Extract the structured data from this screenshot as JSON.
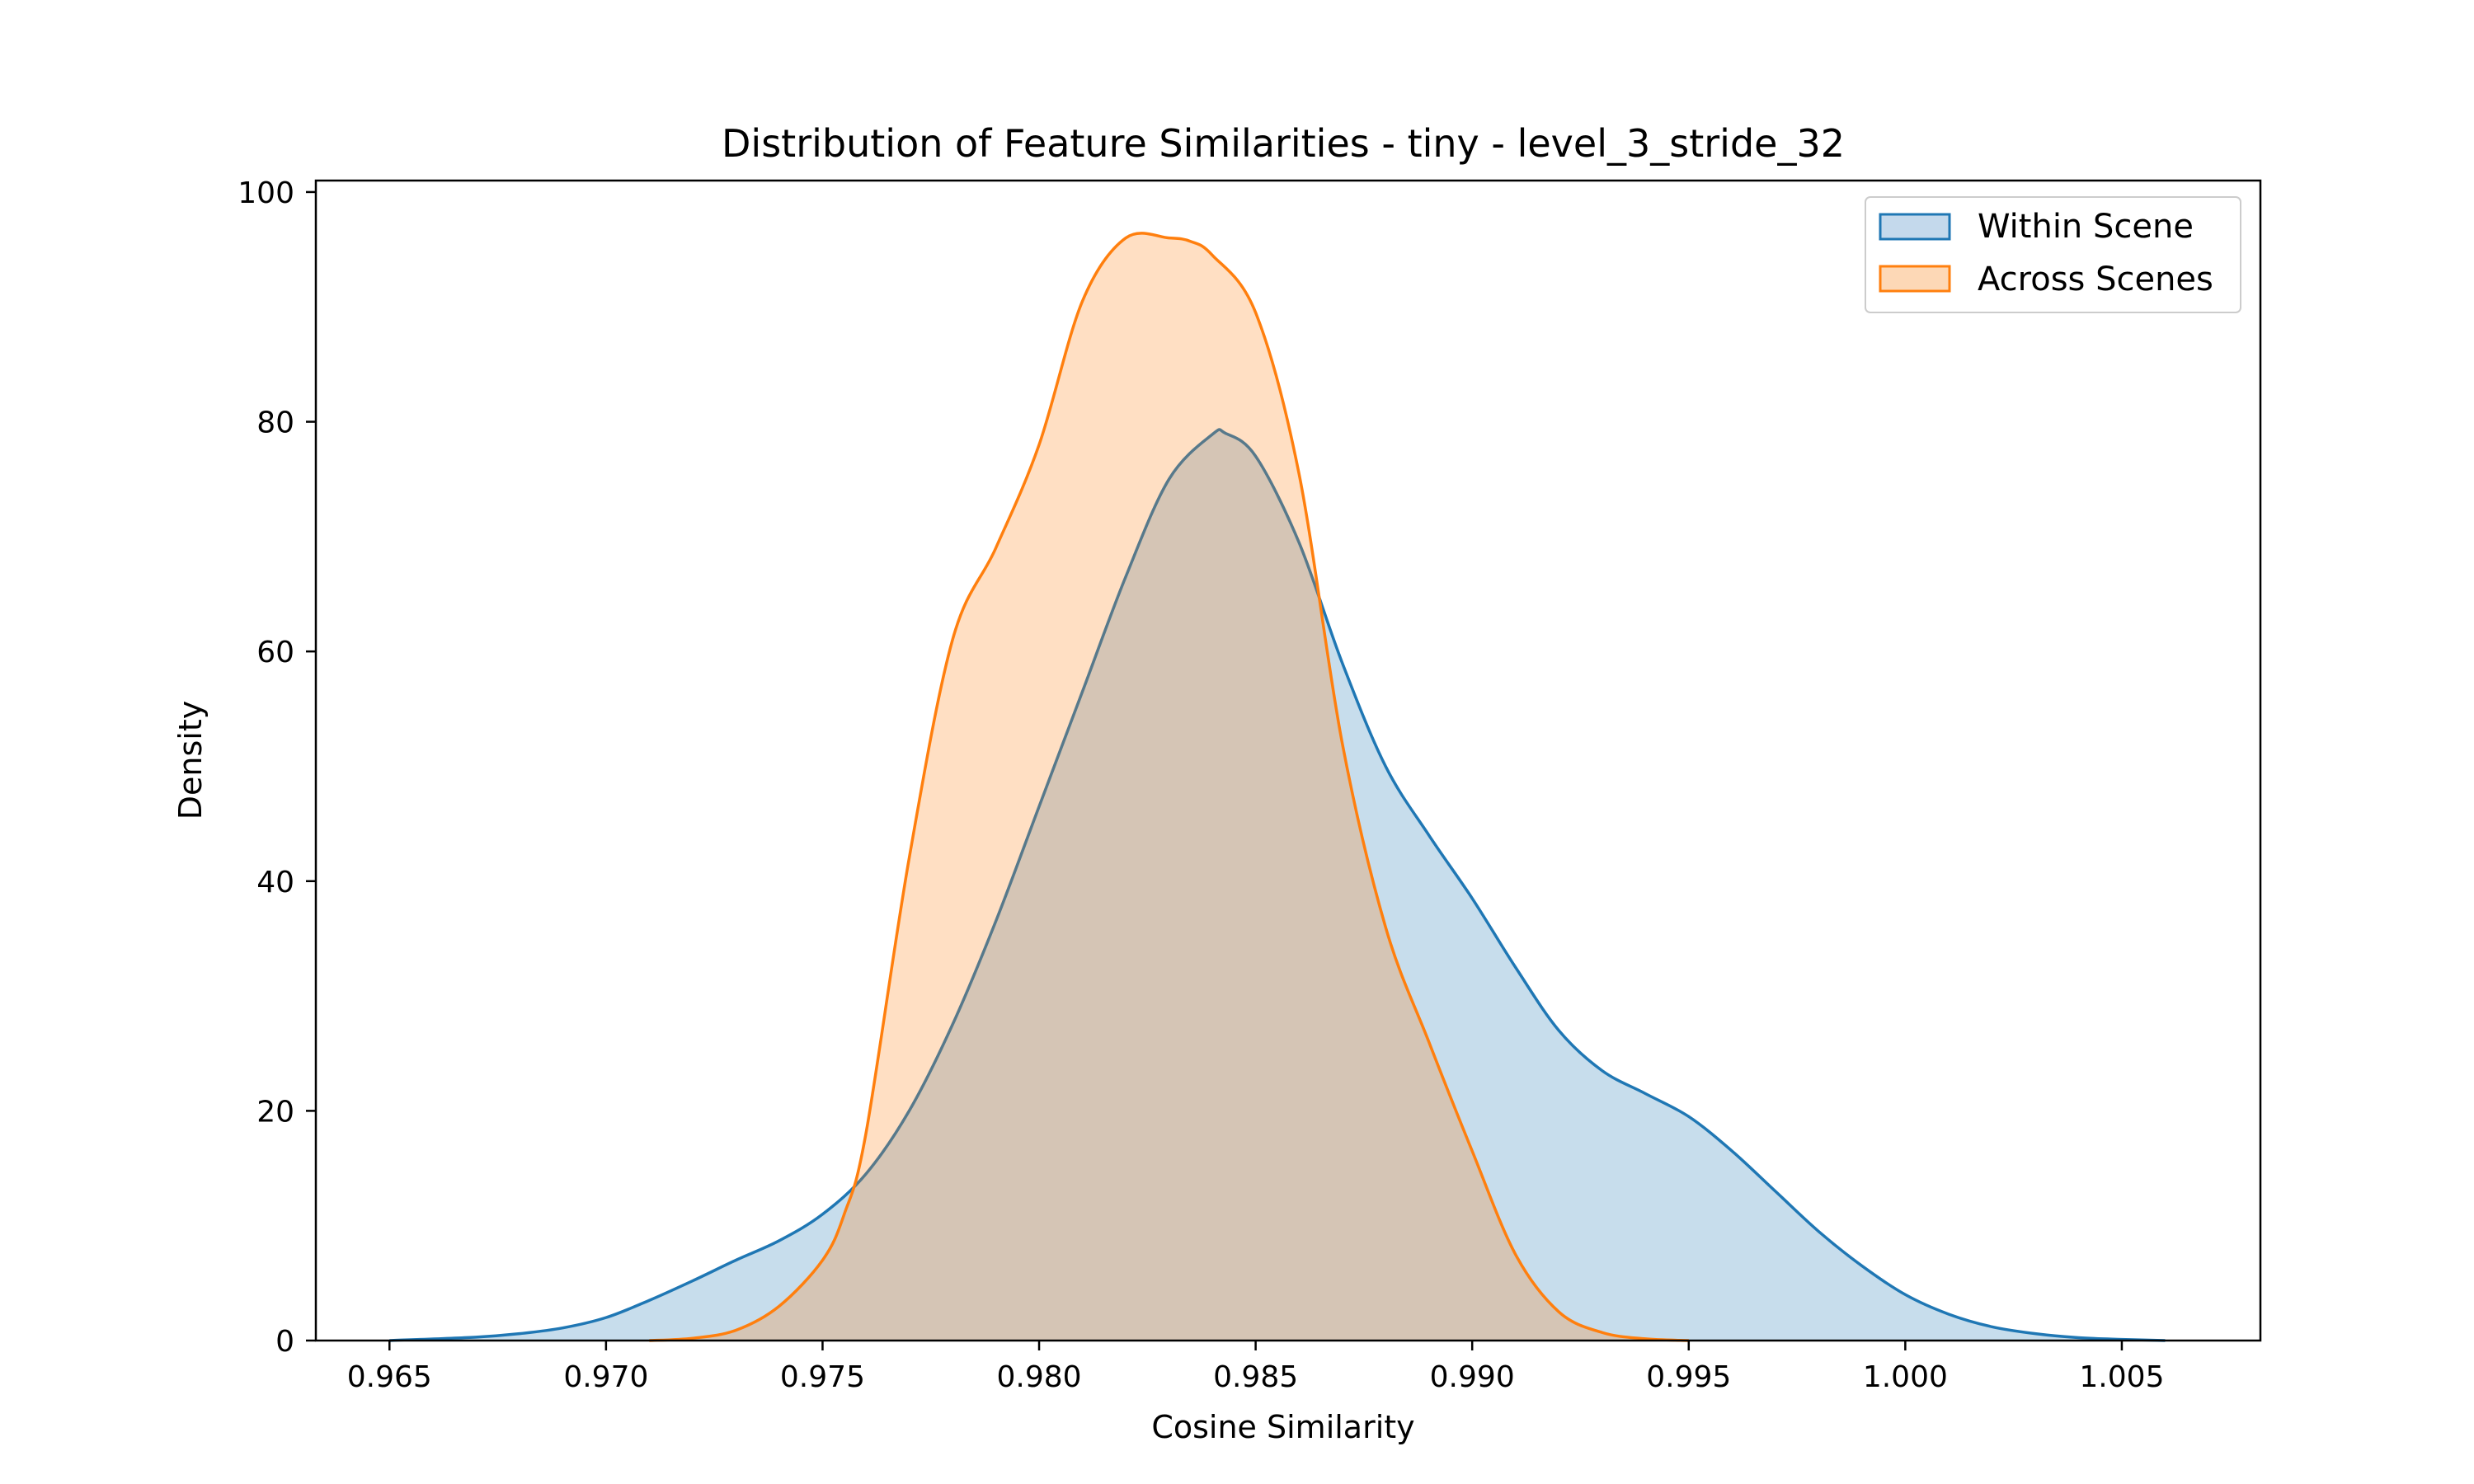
{
  "chart_data": {
    "type": "area",
    "title": "Distribution of Feature Similarities - tiny - level_3_stride_32",
    "xlabel": "Cosine Similarity",
    "ylabel": "Density",
    "xlim": [
      0.9633,
      1.0082
    ],
    "ylim": [
      0,
      101
    ],
    "x_ticks": [
      0.965,
      0.97,
      0.975,
      0.98,
      0.985,
      0.99,
      0.995,
      1.0,
      1.005
    ],
    "x_tick_labels": [
      "0.965",
      "0.970",
      "0.975",
      "0.980",
      "0.985",
      "0.990",
      "0.995",
      "1.000",
      "1.005"
    ],
    "y_ticks": [
      0,
      20,
      40,
      60,
      80,
      100
    ],
    "y_tick_labels": [
      "0",
      "20",
      "40",
      "60",
      "80",
      "100"
    ],
    "grid": false,
    "legend_position": "top-right",
    "series": [
      {
        "name": "Within Scene",
        "color": "#1f77b4",
        "fill_color": "#c4d9ec",
        "x": [
          0.965,
          0.967,
          0.968,
          0.969,
          0.97,
          0.971,
          0.972,
          0.973,
          0.974,
          0.975,
          0.976,
          0.977,
          0.978,
          0.979,
          0.98,
          0.981,
          0.982,
          0.983,
          0.984,
          0.9843,
          0.985,
          0.986,
          0.987,
          0.988,
          0.989,
          0.99,
          0.991,
          0.992,
          0.993,
          0.994,
          0.995,
          0.996,
          0.997,
          0.998,
          0.999,
          1.0,
          1.001,
          1.002,
          1.003,
          1.004,
          1.005,
          1.006
        ],
        "y": [
          0,
          0.3,
          0.6,
          1.1,
          2.0,
          3.5,
          5.2,
          7.0,
          8.7,
          11.0,
          14.5,
          20.0,
          27.5,
          36.5,
          46.5,
          56.5,
          66.5,
          75.0,
          78.9,
          79.0,
          77.0,
          69.5,
          59.0,
          50.0,
          44.0,
          38.5,
          32.5,
          27.0,
          23.5,
          21.5,
          19.5,
          16.5,
          13.0,
          9.5,
          6.5,
          4.0,
          2.3,
          1.2,
          0.6,
          0.25,
          0.1,
          0
        ]
      },
      {
        "name": "Across Scenes",
        "color": "#ff7f0e",
        "fill_color": "#fdd8b6",
        "x": [
          0.971,
          0.972,
          0.973,
          0.974,
          0.975,
          0.9755,
          0.976,
          0.977,
          0.978,
          0.979,
          0.98,
          0.981,
          0.982,
          0.983,
          0.9835,
          0.984,
          0.985,
          0.986,
          0.987,
          0.988,
          0.989,
          0.99,
          0.991,
          0.992,
          0.993,
          0.994,
          0.995
        ],
        "y": [
          0,
          0.2,
          0.9,
          3.0,
          7.0,
          11.0,
          18.0,
          42.0,
          61.0,
          69.0,
          78.0,
          90.5,
          96.0,
          96.0,
          95.7,
          94.5,
          89.5,
          75.5,
          52.0,
          36.0,
          26.0,
          16.5,
          7.5,
          2.5,
          0.7,
          0.15,
          0
        ]
      }
    ]
  }
}
